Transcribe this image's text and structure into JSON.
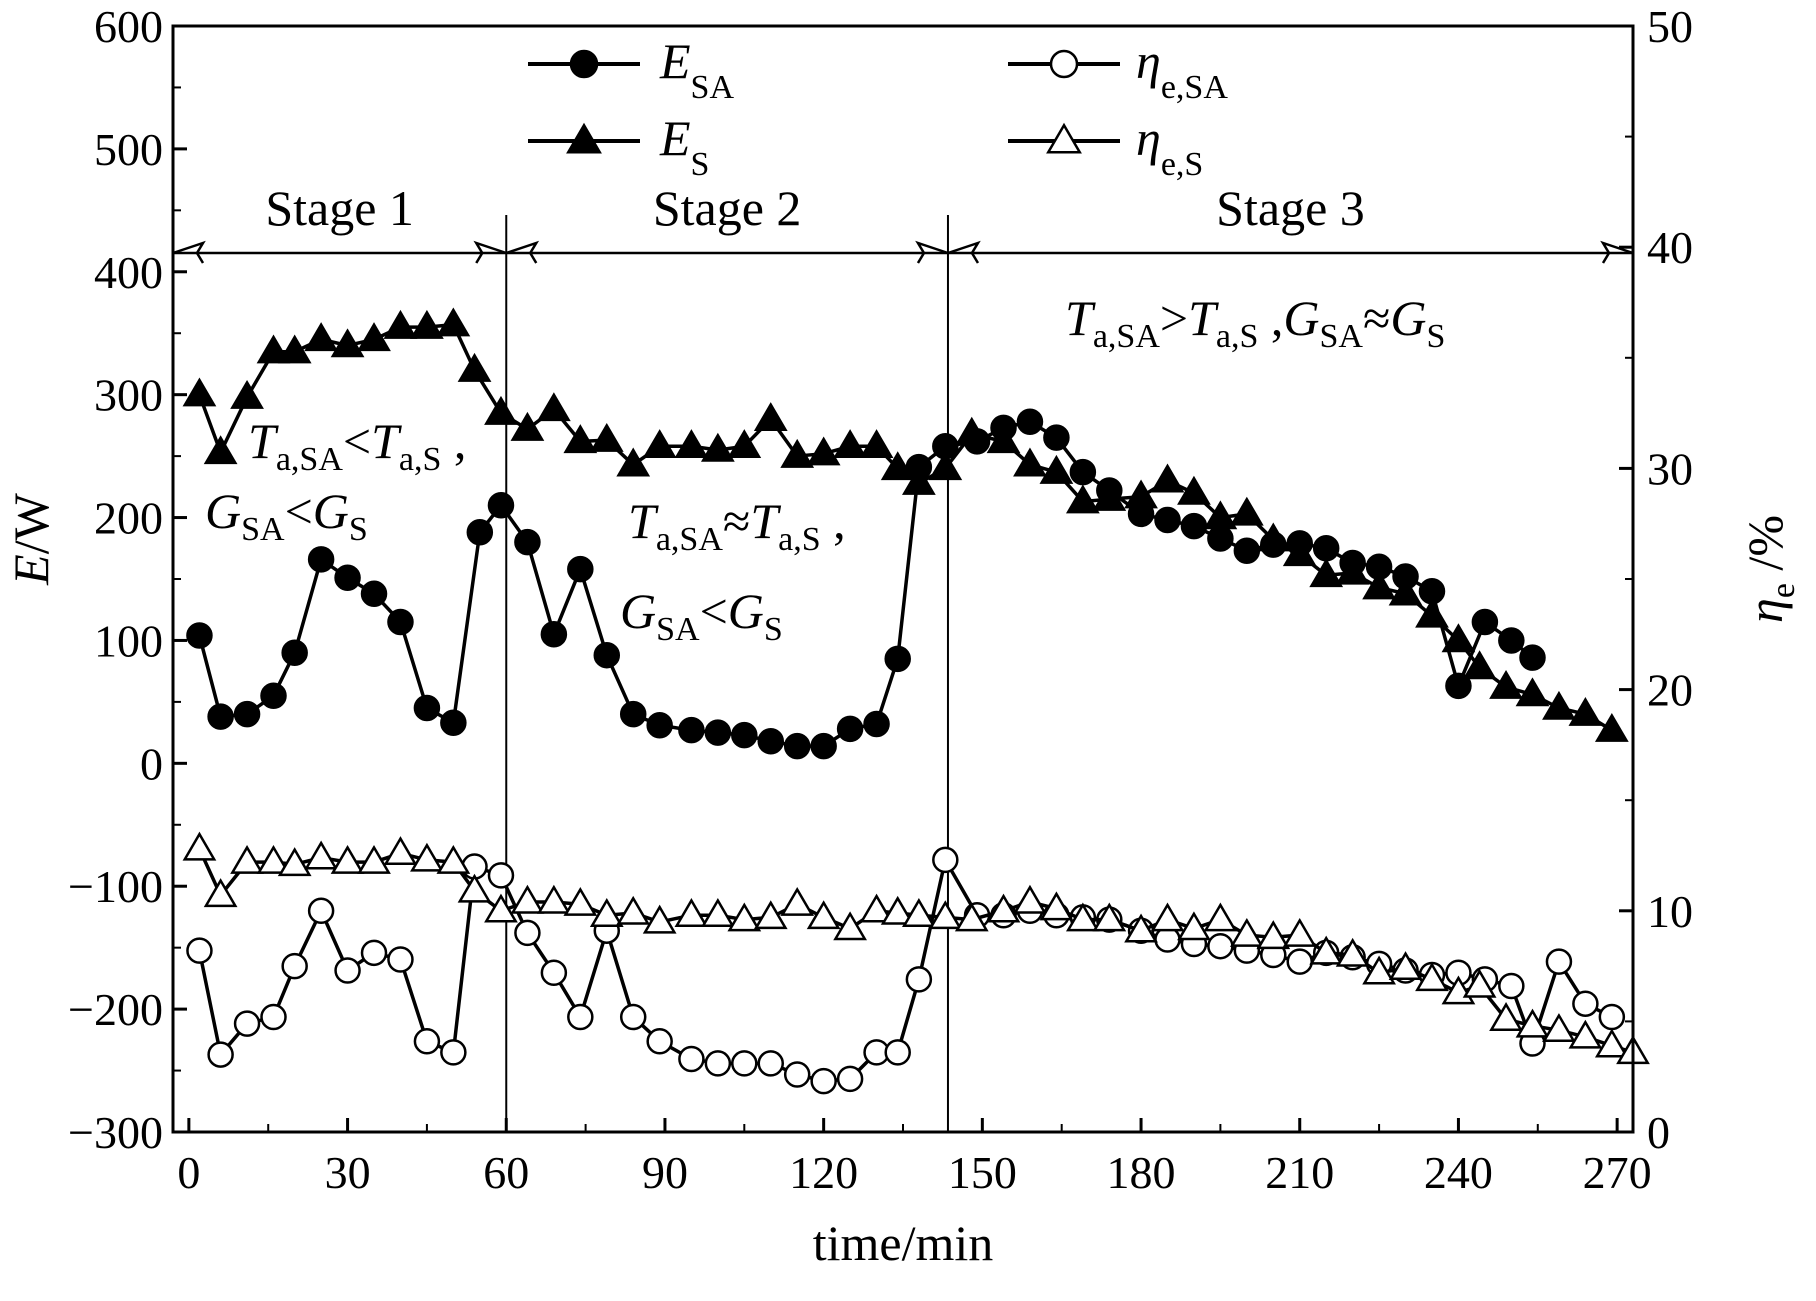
{
  "chart_data": {
    "type": "line",
    "xlabel": "time/min",
    "ylabel_left": {
      "var": "E",
      "unit": "/W"
    },
    "ylabel_right": {
      "var": "η",
      "sub": "e",
      "unit": " /%"
    },
    "xlim": [
      -3,
      273
    ],
    "ylim_left": [
      -300,
      600
    ],
    "ylim_right": [
      0,
      50
    ],
    "x_ticks": [
      0,
      30,
      60,
      90,
      120,
      150,
      180,
      210,
      240,
      270
    ],
    "y_left_ticks": [
      -300,
      -200,
      -100,
      0,
      100,
      200,
      300,
      400,
      500,
      600
    ],
    "y_right_ticks": [
      0,
      10,
      20,
      30,
      40,
      50
    ],
    "stage_dividers": [
      60,
      143.5
    ],
    "stages": [
      {
        "label": "Stage 1",
        "from": -3,
        "to": 60
      },
      {
        "label": "Stage 2",
        "from": 60,
        "to": 143.5
      },
      {
        "label": "Stage 3",
        "from": 143.5,
        "to": 273
      }
    ],
    "annotations": {
      "stage1_line1": {
        "a1": "T",
        "s1": "a,SA",
        "op": "<",
        "a2": "T",
        "s2": "a,S",
        "tail": " ,"
      },
      "stage1_line2": {
        "a1": "G",
        "s1": "SA",
        "op": "<",
        "a2": "G",
        "s2": "S",
        "tail": ""
      },
      "stage2_line1": {
        "a1": "T",
        "s1": "a,SA",
        "op": "≈",
        "a2": "T",
        "s2": "a,S",
        "tail": " ,"
      },
      "stage2_line2": {
        "a1": "G",
        "s1": "SA",
        "op": "<",
        "a2": "G",
        "s2": "S",
        "tail": ""
      },
      "stage3_line1": {
        "a1": "T",
        "s1": "a,SA",
        "op": ">",
        "a2": "T",
        "s2": "a,S",
        "sep": " ,",
        "b1": "G",
        "t1": "SA",
        "op2": "≈",
        "b2": "G",
        "t2": "S"
      }
    },
    "series": [
      {
        "name": "E_SA",
        "label_main": "E",
        "label_sub": "SA",
        "axis": "left",
        "marker": "circle",
        "filled": true,
        "x": [
          2,
          6,
          11,
          16,
          20,
          25,
          30,
          35,
          40,
          45,
          50,
          55,
          59,
          64,
          69,
          74,
          79,
          84,
          89,
          95,
          100,
          105,
          110,
          115,
          120,
          125,
          130,
          134,
          138,
          143,
          149,
          154,
          159,
          164,
          169,
          174,
          180,
          185,
          190,
          195,
          200,
          205,
          210,
          215,
          220,
          225,
          230,
          235,
          240,
          245,
          250,
          254
        ],
        "y": [
          104,
          38,
          40,
          55,
          90,
          166,
          151,
          138,
          115,
          45,
          33,
          188,
          210,
          180,
          105,
          158,
          88,
          40,
          31,
          27,
          25,
          23,
          18,
          14,
          14,
          28,
          32,
          85,
          241,
          258,
          262,
          273,
          278,
          265,
          237,
          222,
          203,
          198,
          193,
          183,
          173,
          178,
          179,
          175,
          163,
          160,
          152,
          140,
          63,
          115,
          100,
          86
        ]
      },
      {
        "name": "E_S",
        "label_main": "E",
        "label_sub": "S",
        "axis": "left",
        "marker": "triangle",
        "filled": true,
        "x": [
          2,
          6,
          11,
          16,
          20,
          25,
          30,
          35,
          40,
          45,
          50,
          54,
          59,
          64,
          69,
          74,
          79,
          84,
          89,
          95,
          100,
          105,
          110,
          115,
          120,
          125,
          130,
          134,
          138,
          143,
          148,
          154,
          159,
          164,
          169,
          174,
          180,
          185,
          190,
          195,
          200,
          205,
          210,
          215,
          220,
          225,
          230,
          235,
          240,
          244,
          249,
          254,
          259,
          264,
          269
        ],
        "y": [
          300,
          253,
          298,
          335,
          335,
          345,
          340,
          345,
          355,
          355,
          357,
          320,
          285,
          272,
          288,
          262,
          263,
          243,
          258,
          258,
          255,
          258,
          280,
          250,
          252,
          258,
          258,
          240,
          228,
          240,
          268,
          262,
          243,
          237,
          213,
          215,
          217,
          230,
          220,
          200,
          203,
          182,
          170,
          153,
          155,
          143,
          138,
          120,
          100,
          78,
          62,
          56,
          45,
          40,
          27
        ]
      },
      {
        "name": "η_e,SA",
        "label_main": "η",
        "label_sub": "e,SA",
        "axis": "right",
        "marker": "circle",
        "filled": false,
        "x": [
          2,
          6,
          11,
          16,
          20,
          25,
          30,
          35,
          40,
          45,
          50,
          54,
          59,
          64,
          69,
          74,
          79,
          84,
          89,
          95,
          100,
          105,
          110,
          115,
          120,
          125,
          130,
          134,
          138,
          143,
          149,
          154,
          159,
          164,
          169,
          174,
          180,
          185,
          190,
          195,
          200,
          205,
          210,
          215,
          220,
          225,
          230,
          235,
          240,
          245,
          250,
          254,
          259,
          264,
          269
        ],
        "y": [
          8.2,
          3.5,
          4.9,
          5.2,
          7.5,
          10,
          7.3,
          8.1,
          7.8,
          4.1,
          3.6,
          12,
          11.6,
          9,
          7.2,
          5.2,
          9.1,
          5.2,
          4.1,
          3.3,
          3.1,
          3.1,
          3.1,
          2.6,
          2.3,
          2.4,
          3.6,
          3.6,
          6.9,
          12.3,
          9.8,
          9.8,
          10,
          9.8,
          9.7,
          9.6,
          9.1,
          8.7,
          8.5,
          8.4,
          8.2,
          8,
          7.7,
          8.1,
          7.9,
          7.6,
          7.3,
          7.1,
          7.2,
          6.9,
          6.6,
          4,
          7.7,
          5.8,
          5.2
        ]
      },
      {
        "name": "η_e,S",
        "label_main": "η",
        "label_sub": "e,S",
        "axis": "right",
        "marker": "triangle",
        "filled": false,
        "x": [
          2,
          6,
          11,
          16,
          20,
          25,
          30,
          35,
          40,
          45,
          50,
          54,
          59,
          64,
          69,
          74,
          79,
          84,
          89,
          95,
          100,
          105,
          110,
          115,
          120,
          125,
          130,
          134,
          138,
          143,
          148,
          154,
          159,
          164,
          169,
          174,
          180,
          185,
          190,
          195,
          200,
          205,
          210,
          215,
          220,
          225,
          230,
          235,
          240,
          244,
          249,
          254,
          259,
          264,
          269,
          273
        ],
        "y": [
          12.8,
          10.7,
          12.2,
          12.2,
          12.1,
          12.4,
          12.2,
          12.2,
          12.6,
          12.3,
          12.2,
          10.9,
          10,
          10.4,
          10.4,
          10.3,
          9.8,
          9.9,
          9.5,
          9.8,
          9.8,
          9.6,
          9.7,
          10.3,
          9.7,
          9.2,
          10,
          9.9,
          9.8,
          9.7,
          9.6,
          10,
          10.4,
          10.1,
          9.6,
          9.6,
          9.1,
          9.6,
          9.2,
          9.6,
          8.9,
          8.8,
          8.9,
          8.1,
          8,
          7.2,
          7.4,
          6.9,
          6.3,
          6.6,
          5.1,
          4.8,
          4.6,
          4.3,
          3.9,
          3.6
        ]
      }
    ],
    "legend": {
      "layout": "two-columns",
      "placement": "top"
    }
  }
}
